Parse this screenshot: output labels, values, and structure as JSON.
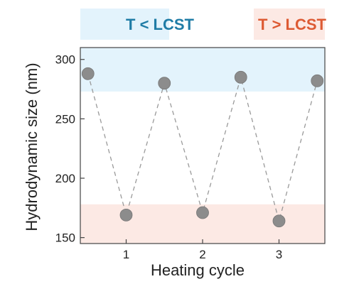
{
  "chart_data": {
    "type": "scatter",
    "title": "",
    "xlabel": "Heating cycle",
    "ylabel": "Hydrodynamic  size (nm)",
    "xlim": [
      0.4,
      3.6
    ],
    "ylim": [
      145,
      310
    ],
    "xticks": [
      1,
      2,
      3
    ],
    "yticks": [
      150,
      200,
      250,
      300
    ],
    "grid": false,
    "connector": "dashed",
    "series": [
      {
        "x": [
          0.5,
          1,
          1.5,
          2,
          2.5,
          3,
          3.5
        ],
        "values": [
          288,
          169,
          280,
          171,
          285,
          164,
          282
        ]
      }
    ],
    "bands": [
      {
        "label": "T < LCST",
        "y_range": [
          273,
          310
        ],
        "color": "#e3f3fc",
        "text_color": "#1f7ca6"
      },
      {
        "label": "T > LCST",
        "y_range": [
          145,
          178
        ],
        "color": "#fce9e4",
        "text_color": "#dd5a33"
      }
    ],
    "marker_color": "#8c8c8c"
  }
}
